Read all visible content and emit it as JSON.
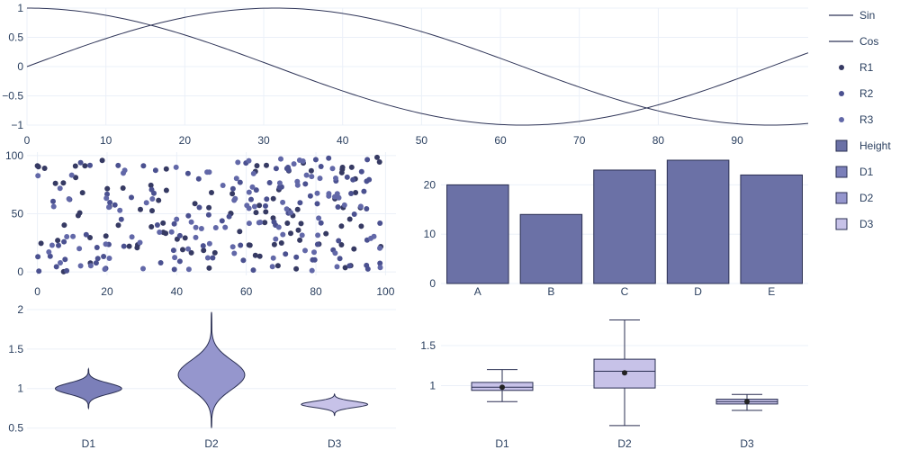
{
  "colors": {
    "line": "#2f3558",
    "r1": "#363a63",
    "r2": "#4b5190",
    "r3": "#6268a8",
    "height_bar": "#6b71a6",
    "d1": "#7b7fb9",
    "d2": "#9596cd",
    "d3": "#c7c2e8",
    "stroke": "#2a2f52",
    "grid": "#ebf0f8",
    "text": "#2a3f5f"
  },
  "legend": [
    {
      "name": "Sin",
      "kind": "line",
      "color_key": "line"
    },
    {
      "name": "Cos",
      "kind": "line",
      "color_key": "line"
    },
    {
      "name": "R1",
      "kind": "marker",
      "color_key": "r1"
    },
    {
      "name": "R2",
      "kind": "marker",
      "color_key": "r2"
    },
    {
      "name": "R3",
      "kind": "marker",
      "color_key": "r3"
    },
    {
      "name": "Height",
      "kind": "box",
      "color_key": "height_bar"
    },
    {
      "name": "D1",
      "kind": "box",
      "color_key": "d1"
    },
    {
      "name": "D2",
      "kind": "box",
      "color_key": "d2"
    },
    {
      "name": "D3",
      "kind": "box",
      "color_key": "d3"
    }
  ],
  "chart_data": [
    {
      "type": "line",
      "x_range": [
        0,
        99
      ],
      "ylim": [
        -1,
        1
      ],
      "x_ticks": [
        0,
        10,
        20,
        30,
        40,
        50,
        60,
        70,
        80,
        90
      ],
      "y_ticks": [
        -1,
        -0.5,
        0,
        0.5,
        1
      ],
      "y_tick_labels": [
        "−1",
        "−0.5",
        "0",
        "0.5",
        "1"
      ],
      "grid": true,
      "series": [
        {
          "name": "Sin",
          "function": "sin",
          "period": 125.66
        },
        {
          "name": "Cos",
          "function": "cos",
          "period": 125.66
        }
      ]
    },
    {
      "type": "scatter",
      "xlim": [
        -3,
        103
      ],
      "ylim": [
        -3,
        103
      ],
      "x_ticks": [
        0,
        20,
        40,
        60,
        80,
        100
      ],
      "y_ticks": [
        0,
        50,
        100
      ],
      "grid": true,
      "series": [
        {
          "name": "R1",
          "points": 100,
          "x_range": [
            0,
            99
          ],
          "y_range": [
            0,
            99
          ]
        },
        {
          "name": "R2",
          "points": 100,
          "x_range": [
            0,
            99
          ],
          "y_range": [
            0,
            99
          ]
        },
        {
          "name": "R3",
          "points": 100,
          "x_range": [
            0,
            99
          ],
          "y_range": [
            0,
            99
          ]
        }
      ]
    },
    {
      "type": "bar",
      "categories": [
        "A",
        "B",
        "C",
        "D",
        "E"
      ],
      "series": [
        {
          "name": "Height",
          "values": [
            20,
            14,
            23,
            25,
            22
          ]
        }
      ],
      "ylim": [
        0,
        25
      ],
      "y_ticks": [
        0,
        10,
        20
      ],
      "grid": true
    },
    {
      "type": "violin",
      "categories": [
        "D1",
        "D2",
        "D3"
      ],
      "ylim": [
        0.45,
        2
      ],
      "y_ticks": [
        0.5,
        1,
        1.5,
        2
      ],
      "grid": true,
      "series": [
        {
          "name": "D1",
          "min": 0.75,
          "max": 1.25,
          "center": 1.0,
          "spread": 0.07
        },
        {
          "name": "D2",
          "min": 0.5,
          "max": 1.97,
          "center": 1.17,
          "spread": 0.19
        },
        {
          "name": "D3",
          "min": 0.66,
          "max": 0.93,
          "center": 0.8,
          "spread": 0.04
        }
      ]
    },
    {
      "type": "box",
      "categories": [
        "D1",
        "D2",
        "D3"
      ],
      "ylim": [
        0.42,
        1.95
      ],
      "y_ticks": [
        1,
        1.5
      ],
      "grid": true,
      "series": [
        {
          "name": "D1",
          "min": 0.8,
          "q1": 0.94,
          "median": 0.98,
          "q3": 1.04,
          "max": 1.2,
          "mean": 0.98
        },
        {
          "name": "D2",
          "min": 0.5,
          "q1": 0.97,
          "median": 1.18,
          "q3": 1.33,
          "max": 1.82,
          "mean": 1.16
        },
        {
          "name": "D3",
          "min": 0.69,
          "q1": 0.77,
          "median": 0.8,
          "q3": 0.83,
          "max": 0.89,
          "mean": 0.8
        }
      ]
    }
  ]
}
